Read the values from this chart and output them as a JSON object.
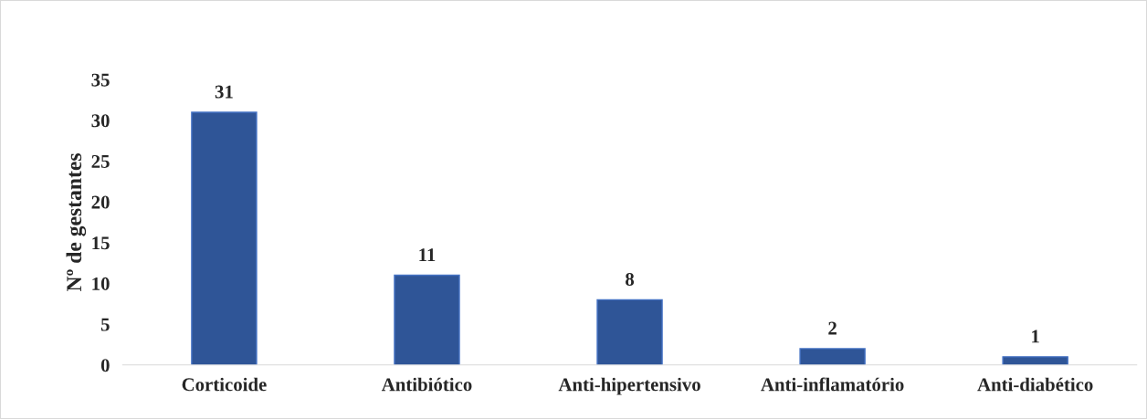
{
  "chart_data": {
    "type": "bar",
    "ylabel": "Nº de gestantes",
    "categories": [
      "Corticoide",
      "Antibiótico",
      "Anti-hipertensivo",
      "Anti-inflamatório",
      "Anti-diabético"
    ],
    "values": [
      31,
      11,
      8,
      2,
      1
    ],
    "color": "#2f5597",
    "ylim": [
      0,
      35
    ],
    "yticks": [
      0,
      5,
      10,
      15,
      20,
      25,
      30,
      35
    ],
    "grid": false,
    "data_labels": true
  }
}
